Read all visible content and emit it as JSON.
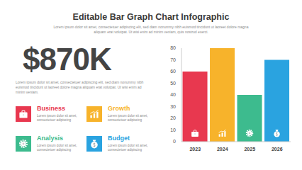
{
  "header": {
    "title": "Editable Bar Graph Chart Infographic",
    "subtitle": "Lorem ipsum dolor sit amet, consectetuer adipiscing elit, sed diam nonummy nibh euismod tincidunt ut laoreet dolore magna aliquam erat volutpat. Ut wisi enim ad minim veniam, quis nostrud exerci."
  },
  "highlight": {
    "value": "$870K",
    "text": "Lorem ipsum dolor sit amet, consectetuer adipiscing elit, sed diam nonummy nibh euismod tincidunt ut laoreet dolore magna aliquam erat volutpat. Ut wisi enim ad minim veniam."
  },
  "items": [
    {
      "label": "Business",
      "text": "Lorem ipsum dolor sit amet, consectetuer adipiscing"
    },
    {
      "label": "Growth",
      "text": "Lorem ipsum dolor sit amet, consectetuer adipiscing"
    },
    {
      "label": "Analysis",
      "text": "Lorem ipsum dolor sit amet, consectetuer adipiscing"
    },
    {
      "label": "Budget",
      "text": "Lorem ipsum dolor sit amet, consectetuer adipiscing"
    }
  ],
  "chart_data": {
    "type": "bar",
    "categories": [
      "2023",
      "2024",
      "2025",
      "2026"
    ],
    "values": [
      60,
      80,
      40,
      70
    ],
    "colors": [
      "#e8384f",
      "#f7b32b",
      "#3dbb8e",
      "#2aa3e0"
    ],
    "ylim": [
      0,
      80
    ],
    "yticks": [
      0,
      10,
      20,
      30,
      40,
      50,
      60,
      70,
      80
    ],
    "grid": false
  }
}
